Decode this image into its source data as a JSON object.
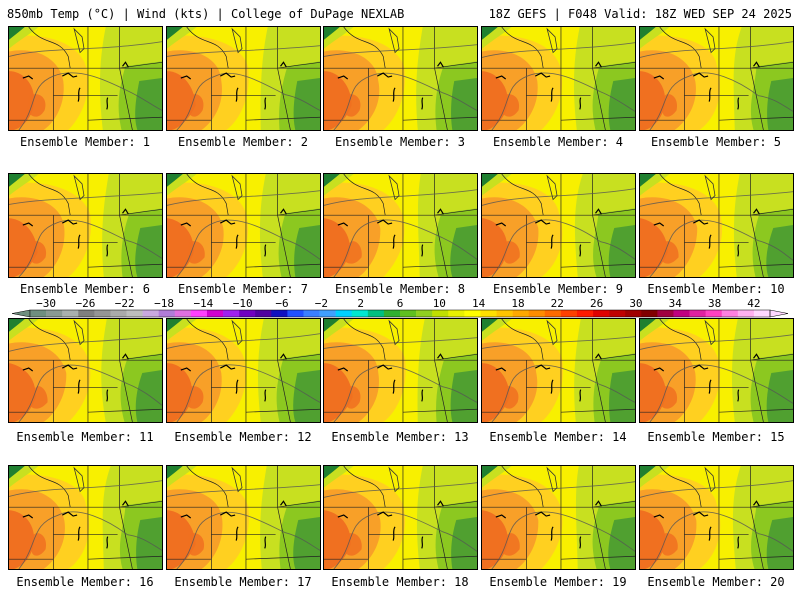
{
  "header": {
    "title_left": "850mb Temp (°C) | Wind (kts) | College of DuPage NEXLAB",
    "title_right": "18Z GEFS | F048 Valid: 18Z WED SEP 24 2025"
  },
  "members": [
    {
      "label": "Ensemble Member: 1"
    },
    {
      "label": "Ensemble Member: 2"
    },
    {
      "label": "Ensemble Member: 3"
    },
    {
      "label": "Ensemble Member: 4"
    },
    {
      "label": "Ensemble Member: 5"
    },
    {
      "label": "Ensemble Member: 6"
    },
    {
      "label": "Ensemble Member: 7"
    },
    {
      "label": "Ensemble Member: 8"
    },
    {
      "label": "Ensemble Member: 9"
    },
    {
      "label": "Ensemble Member: 10"
    },
    {
      "label": "Ensemble Member: 11"
    },
    {
      "label": "Ensemble Member: 12"
    },
    {
      "label": "Ensemble Member: 13"
    },
    {
      "label": "Ensemble Member: 14"
    },
    {
      "label": "Ensemble Member: 15"
    },
    {
      "label": "Ensemble Member: 16"
    },
    {
      "label": "Ensemble Member: 17"
    },
    {
      "label": "Ensemble Member: 18"
    },
    {
      "label": "Ensemble Member: 19"
    },
    {
      "label": "Ensemble Member: 20"
    }
  ],
  "colorbar": {
    "tick_labels": [
      "-30",
      "-26",
      "-22",
      "-18",
      "-14",
      "-10",
      "-6",
      "-2",
      "2",
      "6",
      "10",
      "14",
      "18",
      "22",
      "26",
      "30",
      "34",
      "38",
      "42"
    ],
    "colors": [
      "#6f8f7f",
      "#8a9a92",
      "#a9b0ad",
      "#7f7f7f",
      "#959595",
      "#aaaaaa",
      "#bdbdbd",
      "#c9a8e0",
      "#b07cd8",
      "#e070e0",
      "#ff40ff",
      "#d000d0",
      "#a020f0",
      "#7000c0",
      "#5000a0",
      "#1010c0",
      "#2050ff",
      "#3b7fff",
      "#40a0ff",
      "#00d0ff",
      "#00e8d0",
      "#00c080",
      "#30b030",
      "#60c020",
      "#90d020",
      "#c0e000",
      "#e8f000",
      "#ffff00",
      "#ffe000",
      "#ffc400",
      "#ffa800",
      "#ff8c00",
      "#ff6a00",
      "#ff4000",
      "#ff1a00",
      "#e00000",
      "#c00000",
      "#a00000",
      "#800000",
      "#a00040",
      "#c00080",
      "#e020a0",
      "#ff40c0",
      "#ff80e0",
      "#ffb0f0",
      "#ffd8ff"
    ]
  },
  "map_colors": {
    "hot": "#f07020",
    "warm": "#f8a028",
    "mild": "#ffd020",
    "yellow": "#f8f000",
    "lime": "#c8e020",
    "green": "#8cc820",
    "dkgreen": "#50a030",
    "forest": "#208030"
  }
}
